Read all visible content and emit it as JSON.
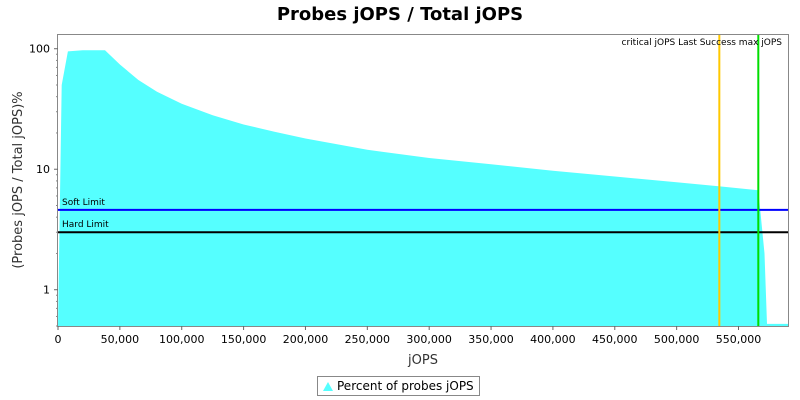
{
  "chart_data": {
    "type": "area",
    "title": "Probes jOPS / Total jOPS",
    "xlabel": "jOPS",
    "ylabel": "(Probes jOPS / Total jOPS)%",
    "y_scale": "log",
    "xlim": [
      0,
      590000
    ],
    "ylim": [
      0.5,
      130
    ],
    "x_ticks": [
      0,
      50000,
      100000,
      150000,
      200000,
      250000,
      300000,
      350000,
      400000,
      450000,
      500000,
      550000
    ],
    "x_tick_labels": [
      "0",
      "50,000",
      "100,000",
      "150,000",
      "200,000",
      "250,000",
      "300,000",
      "350,000",
      "400,000",
      "450,000",
      "500,000",
      "550,000"
    ],
    "y_ticks": [
      1,
      10,
      100
    ],
    "y_tick_labels": [
      "1",
      "10",
      "100"
    ],
    "grid": false,
    "legend_position": "bottom-center",
    "series": [
      {
        "name": "Percent of probes jOPS",
        "color": "#55ffff",
        "x": [
          0,
          3000,
          8000,
          20000,
          38000,
          50000,
          65000,
          80000,
          100000,
          125000,
          150000,
          175000,
          200000,
          250000,
          300000,
          350000,
          400000,
          450000,
          500000,
          535000,
          566000,
          571000,
          573000,
          590000
        ],
        "y": [
          0.5,
          50,
          95,
          97,
          97,
          74,
          55,
          44,
          35,
          28,
          23.5,
          20.5,
          18,
          14.5,
          12.4,
          11,
          9.7,
          8.7,
          7.8,
          7.2,
          6.7,
          2.0,
          0.52,
          0.52
        ]
      }
    ],
    "horizontal_lines": [
      {
        "label": "Soft Limit",
        "y": 4.6,
        "color": "#0000ff"
      },
      {
        "label": "Hard Limit",
        "y": 3.0,
        "color": "#000000"
      }
    ],
    "vertical_lines": [
      {
        "label": "critical jOPS",
        "x": 534500,
        "color": "#ffc800"
      },
      {
        "label": "max jOPS",
        "x": 566000,
        "color": "#00dd00"
      }
    ],
    "annotation_text": "critical jOPS Last Success max jOPS"
  },
  "legend": {
    "label": "Percent of probes jOPS"
  }
}
